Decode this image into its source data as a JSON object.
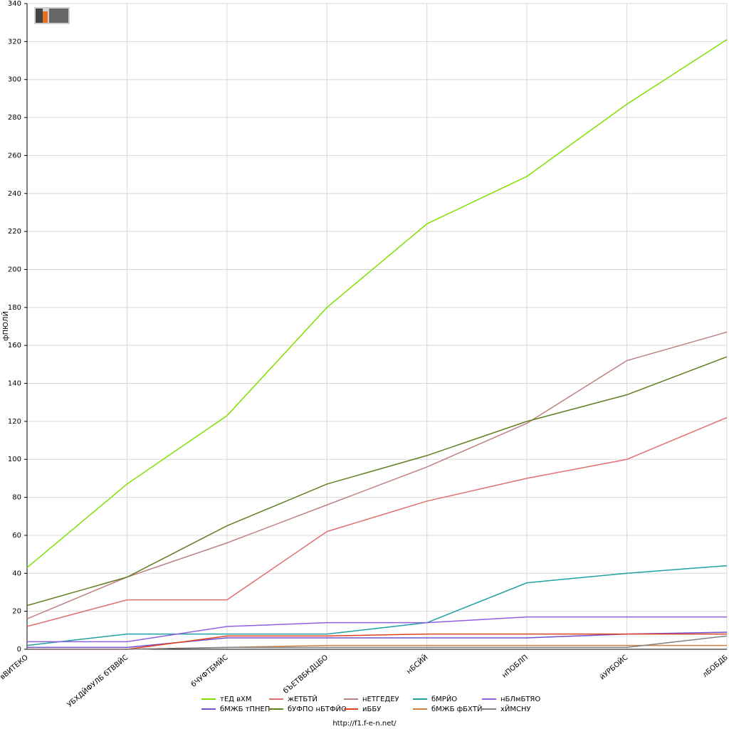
{
  "chart_data": {
    "type": "line",
    "y_label": "фПЮЛЙ",
    "footer": "http://f1.f-e-n.net/",
    "categories": [
      "вВИТЕКО",
      "УБХДЙФУЛБ бТВВЙС",
      "бЧУФТБМЙС",
      "бЪЕТВБКДЦБО",
      "нБСЙЙ",
      "нПОБЛП",
      "йУРБОЙС",
      "лБОБДБ"
    ],
    "ylim": [
      0,
      340
    ],
    "yticks": [
      0,
      20,
      40,
      60,
      80,
      100,
      120,
      140,
      160,
      180,
      200,
      220,
      240,
      260,
      280,
      300,
      320,
      340
    ],
    "grid": true,
    "series": [
      {
        "name": "тЕД вХМ",
        "color": "#80e000",
        "values": [
          43,
          87,
          123,
          180,
          224,
          249,
          287,
          321
        ]
      },
      {
        "name": "жЕТБТЙ",
        "color": "#e07070",
        "values": [
          12,
          26,
          26,
          62,
          78,
          90,
          100,
          122
        ]
      },
      {
        "name": "нЕТГЕДЕУ",
        "color": "#c08080",
        "values": [
          16,
          38,
          56,
          76,
          96,
          119,
          152,
          167
        ]
      },
      {
        "name": "бМРЙО",
        "color": "#20a0a0",
        "values": [
          2,
          8,
          8,
          8,
          14,
          35,
          40,
          44
        ]
      },
      {
        "name": "нБЛмБТЯО",
        "color": "#9060e0",
        "values": [
          4,
          4,
          12,
          14,
          14,
          17,
          17,
          17
        ]
      },
      {
        "name": "бМЖБ тПНЕП",
        "color": "#7050d0",
        "values": [
          1,
          1,
          6,
          6,
          6,
          6,
          8,
          9
        ]
      },
      {
        "name": "бУФПО нБТФЙО",
        "color": "#608020",
        "values": [
          23,
          38,
          65,
          87,
          102,
          120,
          134,
          154
        ]
      },
      {
        "name": "иББУ",
        "color": "#e04020",
        "values": [
          0,
          0,
          7,
          7,
          8,
          8,
          8,
          8
        ]
      },
      {
        "name": "бМЖБ фБХТЙ",
        "color": "#d08040",
        "values": [
          0,
          0,
          1,
          2,
          2,
          2,
          2,
          2
        ]
      },
      {
        "name": "хЙМСНУ",
        "color": "#808080",
        "values": [
          0,
          0,
          1,
          1,
          1,
          1,
          1,
          7
        ]
      }
    ]
  }
}
